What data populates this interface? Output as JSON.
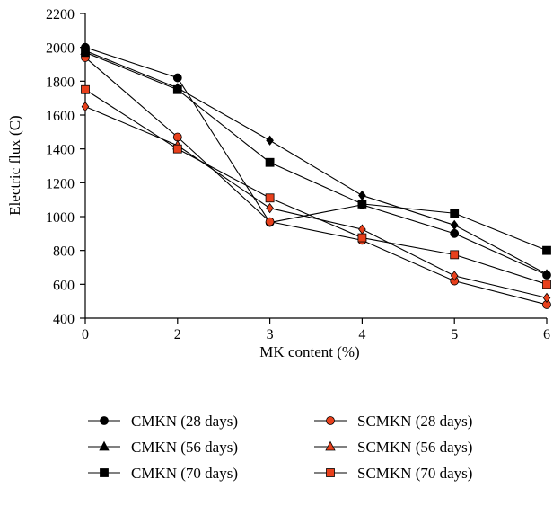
{
  "chart_data": {
    "type": "line",
    "xlabel": "MK content (%)",
    "ylabel": "Electric flux (C)",
    "xlim": [
      0,
      6
    ],
    "ylim": [
      400,
      2200
    ],
    "x_tick_values": [
      0,
      2,
      3,
      4,
      5,
      6
    ],
    "y_tick_values": [
      400,
      600,
      800,
      1000,
      1200,
      1400,
      1600,
      1800,
      2000,
      2200
    ],
    "categories": [
      "0",
      "2",
      "3",
      "4",
      "5",
      "6"
    ],
    "grid": false,
    "legend_position": "bottom",
    "series": [
      {
        "name": "CMKN (28 days)",
        "marker": "circle",
        "color": "#000000",
        "x": [
          0,
          2,
          3,
          4,
          5,
          6
        ],
        "values": [
          2000,
          1820,
          965,
          1070,
          900,
          655
        ]
      },
      {
        "name": "SCMKN (28 days)",
        "marker": "circle",
        "color": "#e8401c",
        "x": [
          0,
          2,
          3,
          4,
          5,
          6
        ],
        "values": [
          1940,
          1470,
          970,
          860,
          620,
          480
        ]
      },
      {
        "name": "CMKN (56 days)",
        "marker": "triangle",
        "color": "#000000",
        "x": [
          0,
          2,
          3,
          4,
          5,
          6
        ],
        "values": [
          1980,
          1760,
          1450,
          1125,
          950,
          660
        ]
      },
      {
        "name": "SCMKN (56 days)",
        "marker": "triangle",
        "color": "#e8401c",
        "x": [
          0,
          2,
          3,
          4,
          5,
          6
        ],
        "values": [
          1650,
          1420,
          1050,
          925,
          650,
          520
        ]
      },
      {
        "name": "CMKN (70 days)",
        "marker": "square",
        "color": "#000000",
        "x": [
          0,
          2,
          3,
          4,
          5,
          6
        ],
        "values": [
          1970,
          1750,
          1320,
          1075,
          1020,
          800
        ]
      },
      {
        "name": "SCMKN (70 days)",
        "marker": "square",
        "color": "#e8401c",
        "x": [
          0,
          2,
          3,
          4,
          5,
          6
        ],
        "values": [
          1750,
          1400,
          1110,
          875,
          775,
          600
        ]
      }
    ],
    "plotted_markers": {
      "CMKN (56 days)": [
        "triangle",
        "diamond",
        "diamond",
        "diamond",
        "diamond",
        "diamond"
      ],
      "SCMKN (56 days)": [
        "diamond",
        "triangle",
        "diamond",
        "diamond",
        "diamond",
        "diamond"
      ]
    }
  }
}
